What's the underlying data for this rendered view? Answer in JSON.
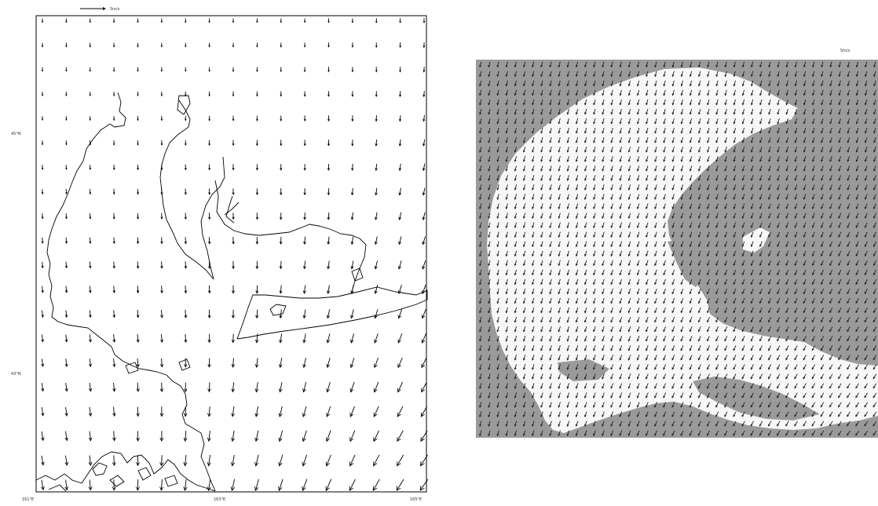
{
  "left_map": {
    "scale_label": "5m/s",
    "lon_labels": [
      "161°E",
      "163°E",
      "165°E"
    ],
    "lat_labels": [
      "45°N",
      "43°N"
    ],
    "wind_grid": {
      "cols": 17,
      "rows": 20
    },
    "colors": {
      "frame": "#000000",
      "arrow": "#000000",
      "coast": "#000000"
    }
  },
  "right_map": {
    "scale_label": "5m/s",
    "wind_grid": {
      "cols": 46,
      "rows": 40
    },
    "colors": {
      "land": "#9a9a9a",
      "water": "#f7f7f7",
      "arrow": "#222222"
    }
  }
}
